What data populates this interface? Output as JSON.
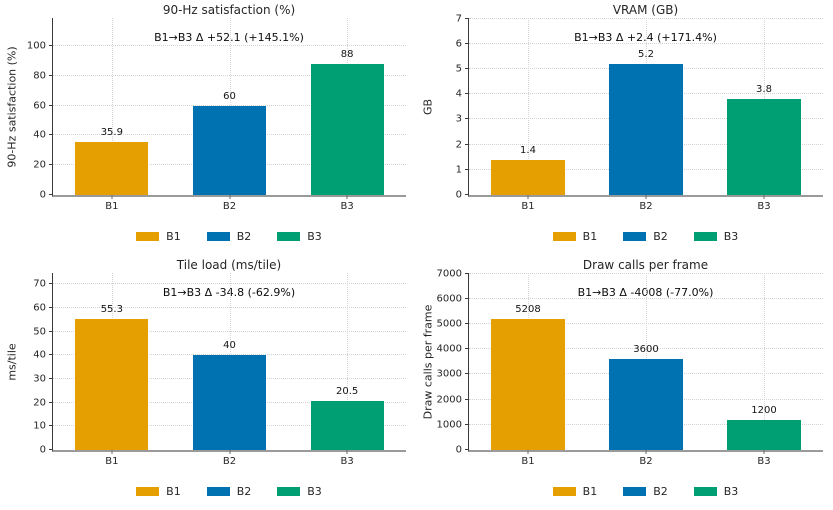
{
  "palette": {
    "B1": "#E69F00",
    "B2": "#0072B2",
    "B3": "#009E73"
  },
  "chart_data": [
    {
      "type": "bar",
      "title": "90-Hz satisfaction (%)",
      "annotation": "B1→B3 Δ +52.1 (+145.1%)",
      "xlabel": "",
      "ylabel": "90-Hz satisfaction (%)",
      "categories": [
        "B1",
        "B2",
        "B3"
      ],
      "values": [
        35.9,
        60,
        88
      ],
      "value_labels": [
        "35.9",
        "60",
        "88"
      ],
      "bar_colors": [
        "#E69F00",
        "#0072B2",
        "#009E73"
      ],
      "ylim": [
        0,
        118.8
      ],
      "yticks": [
        0,
        20,
        40,
        60,
        80,
        100
      ],
      "ytick_labels": [
        "0",
        "20",
        "40",
        "60",
        "80",
        "100"
      ],
      "grid": true,
      "legend": {
        "position": "bottom",
        "entries": [
          {
            "label": "B1",
            "color": "#E69F00"
          },
          {
            "label": "B2",
            "color": "#0072B2"
          },
          {
            "label": "B3",
            "color": "#009E73"
          }
        ]
      }
    },
    {
      "type": "bar",
      "title": "VRAM (GB)",
      "annotation": "B1→B3 Δ +2.4 (+171.4%)",
      "xlabel": "",
      "ylabel": "GB",
      "categories": [
        "B1",
        "B2",
        "B3"
      ],
      "values": [
        1.4,
        5.2,
        3.8
      ],
      "value_labels": [
        "1.4",
        "5.2",
        "3.8"
      ],
      "bar_colors": [
        "#E69F00",
        "#0072B2",
        "#009E73"
      ],
      "ylim": [
        0,
        7.02
      ],
      "yticks": [
        0,
        1,
        2,
        3,
        4,
        5,
        6,
        7
      ],
      "ytick_labels": [
        "0",
        "1",
        "2",
        "3",
        "4",
        "5",
        "6",
        "7"
      ],
      "grid": true,
      "legend": {
        "position": "bottom",
        "entries": [
          {
            "label": "B1",
            "color": "#E69F00"
          },
          {
            "label": "B2",
            "color": "#0072B2"
          },
          {
            "label": "B3",
            "color": "#009E73"
          }
        ]
      }
    },
    {
      "type": "bar",
      "title": "Tile load (ms/tile)",
      "annotation": "B1→B3 Δ -34.8 (-62.9%)",
      "xlabel": "",
      "ylabel": "ms/tile",
      "categories": [
        "B1",
        "B2",
        "B3"
      ],
      "values": [
        55.3,
        40,
        20.5
      ],
      "value_labels": [
        "55.3",
        "40",
        "20.5"
      ],
      "bar_colors": [
        "#E69F00",
        "#0072B2",
        "#009E73"
      ],
      "ylim": [
        0,
        74.7
      ],
      "yticks": [
        0,
        10,
        20,
        30,
        40,
        50,
        60,
        70
      ],
      "ytick_labels": [
        "0",
        "10",
        "20",
        "30",
        "40",
        "50",
        "60",
        "70"
      ],
      "grid": true,
      "legend": {
        "position": "bottom",
        "entries": [
          {
            "label": "B1",
            "color": "#E69F00"
          },
          {
            "label": "B2",
            "color": "#0072B2"
          },
          {
            "label": "B3",
            "color": "#009E73"
          }
        ]
      }
    },
    {
      "type": "bar",
      "title": "Draw calls per frame",
      "annotation": "B1→B3 Δ -4008 (-77.0%)",
      "xlabel": "",
      "ylabel": "Draw calls per frame",
      "categories": [
        "B1",
        "B2",
        "B3"
      ],
      "values": [
        5208,
        3600,
        1200
      ],
      "value_labels": [
        "5208",
        "3600",
        "1200"
      ],
      "bar_colors": [
        "#E69F00",
        "#0072B2",
        "#009E73"
      ],
      "ylim": [
        0,
        7030
      ],
      "yticks": [
        0,
        1000,
        2000,
        3000,
        4000,
        5000,
        6000,
        7000
      ],
      "ytick_labels": [
        "0",
        "1000",
        "2000",
        "3000",
        "4000",
        "5000",
        "6000",
        "7000"
      ],
      "grid": true,
      "legend": {
        "position": "bottom",
        "entries": [
          {
            "label": "B1",
            "color": "#E69F00"
          },
          {
            "label": "B2",
            "color": "#0072B2"
          },
          {
            "label": "B3",
            "color": "#009E73"
          }
        ]
      }
    }
  ]
}
